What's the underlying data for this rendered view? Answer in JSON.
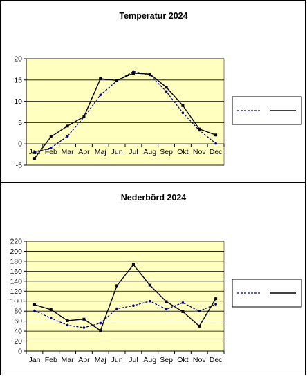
{
  "charts": [
    {
      "id": "temp",
      "chart_data": {
        "type": "line",
        "title": "Temperatur 2024",
        "categories": [
          "Jan",
          "Feb",
          "Mar",
          "Apr",
          "Maj",
          "Jun",
          "Jul",
          "Aug",
          "Sep",
          "Okt",
          "Nov",
          "Dec"
        ],
        "ylim": [
          -5,
          20
        ],
        "yticks": [
          -5,
          0,
          5,
          10,
          15,
          20
        ],
        "grid": true,
        "legend_position": "right",
        "series": [
          {
            "values": [
              -2.0,
              -0.9,
              1.8,
              6.3,
              11.5,
              14.8,
              17.0,
              16.2,
              12.3,
              7.3,
              3.2,
              0.1
            ],
            "color": "#000080",
            "style": "dashed"
          },
          {
            "values": [
              -3.4,
              1.7,
              4.2,
              6.4,
              15.3,
              14.9,
              16.6,
              16.4,
              13.3,
              9.0,
              3.5,
              2.1
            ],
            "color": "#000000",
            "style": "solid"
          }
        ]
      }
    },
    {
      "id": "precip",
      "chart_data": {
        "type": "line",
        "title": "Nederbörd 2024",
        "categories": [
          "Jan",
          "Feb",
          "Mar",
          "Apr",
          "Maj",
          "Jun",
          "Jul",
          "Aug",
          "Sep",
          "Okt",
          "Nov",
          "Dec"
        ],
        "ylim": [
          0,
          220
        ],
        "yticks": [
          0,
          20,
          40,
          60,
          80,
          100,
          120,
          140,
          160,
          180,
          200,
          220
        ],
        "grid": true,
        "legend_position": "right",
        "series": [
          {
            "values": [
              81,
              66,
              52,
              47,
              56,
              85,
              91,
              100,
              84,
              97,
              80,
              94
            ],
            "color": "#000080",
            "style": "dashed"
          },
          {
            "values": [
              93,
              83,
              61,
              64,
              41,
              131,
              173,
              132,
              99,
              79,
              50,
              105
            ],
            "color": "#000000",
            "style": "solid"
          }
        ]
      }
    }
  ],
  "colors": {
    "plot_bg": "#ffffc0",
    "grid": "#000000"
  }
}
